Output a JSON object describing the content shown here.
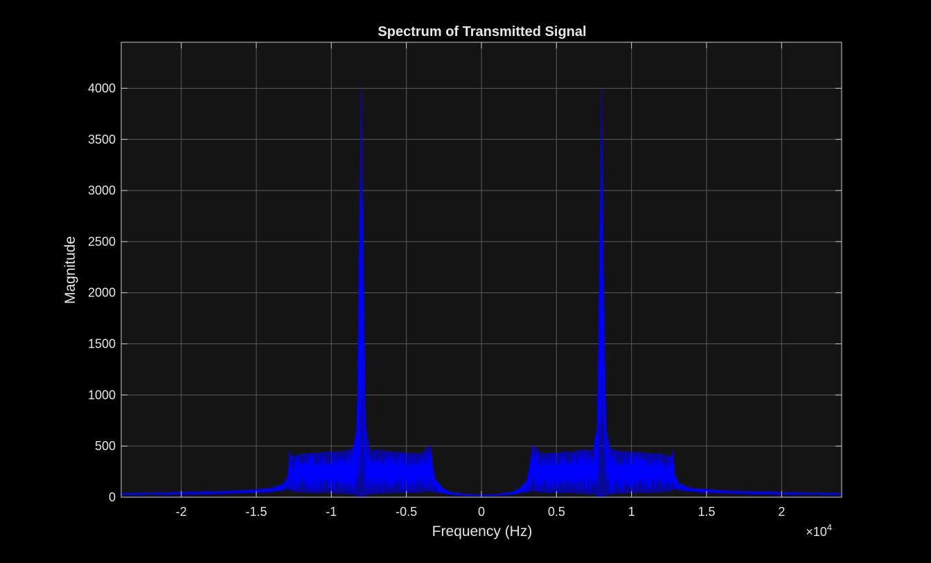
{
  "chart_data": {
    "type": "line",
    "title": "Spectrum of Transmitted Signal",
    "xlabel": "Frequency (Hz)",
    "ylabel": "Magnitude",
    "x_exponent_label": "×10",
    "x_exponent_power": "4",
    "xlim": [
      -24000,
      24000
    ],
    "ylim": [
      0,
      4450
    ],
    "grid": true,
    "x_ticks": [
      -20000,
      -15000,
      -10000,
      -5000,
      0,
      5000,
      10000,
      15000,
      20000
    ],
    "x_tick_labels": [
      "-2",
      "-1.5",
      "-1",
      "-0.5",
      "0",
      "0.5",
      "1",
      "1.5",
      "2"
    ],
    "y_ticks": [
      0,
      500,
      1000,
      1500,
      2000,
      2500,
      3000,
      3500,
      4000
    ],
    "y_tick_labels": [
      "0",
      "500",
      "1000",
      "1500",
      "2000",
      "2500",
      "3000",
      "3500",
      "4000"
    ],
    "colors": {
      "figure_background": "#000000",
      "axes_background": "#141414",
      "grid": "#5a5a5a",
      "axes_box": "#d0d0d0",
      "text": "#e6e6e6",
      "series": "#0000ff"
    },
    "series": [
      {
        "color": "#0000ff",
        "x": [
          -24000,
          -22000,
          -20000,
          -18000,
          -16000,
          -14000,
          -13200,
          -12900,
          -12800,
          -12600,
          -12000,
          -11000,
          -10000,
          -9000,
          -8600,
          -8300,
          -8150,
          -8050,
          -8000,
          -7950,
          -7850,
          -7700,
          -7400,
          -7000,
          -6000,
          -5000,
          -4000,
          -3400,
          -3200,
          -3000,
          -2500,
          -2000,
          -1000,
          0,
          1000,
          2000,
          2500,
          3000,
          3200,
          3400,
          4000,
          5000,
          6000,
          7000,
          7400,
          7700,
          7850,
          7950,
          8000,
          8050,
          8150,
          8300,
          8600,
          9000,
          10000,
          11000,
          12000,
          12600,
          12800,
          12900,
          13200,
          14000,
          16000,
          18000,
          20000,
          22000,
          24000
        ],
        "y_upper": [
          40,
          45,
          50,
          58,
          70,
          95,
          140,
          230,
          470,
          400,
          430,
          440,
          450,
          460,
          480,
          700,
          2600,
          3900,
          4050,
          3900,
          2600,
          700,
          460,
          470,
          450,
          440,
          430,
          520,
          310,
          170,
          90,
          55,
          30,
          25,
          30,
          55,
          90,
          170,
          310,
          520,
          430,
          440,
          450,
          470,
          460,
          700,
          2600,
          3900,
          4050,
          3900,
          2600,
          700,
          480,
          460,
          450,
          440,
          430,
          400,
          470,
          230,
          140,
          95,
          70,
          58,
          50,
          45,
          40
        ],
        "y_lower": [
          25,
          28,
          30,
          34,
          40,
          52,
          65,
          80,
          70,
          60,
          50,
          45,
          40,
          35,
          30,
          20,
          5,
          2,
          0,
          2,
          5,
          20,
          30,
          35,
          40,
          45,
          50,
          60,
          55,
          45,
          35,
          25,
          18,
          15,
          18,
          25,
          35,
          45,
          55,
          60,
          50,
          45,
          40,
          35,
          30,
          20,
          5,
          2,
          0,
          2,
          5,
          20,
          30,
          35,
          40,
          45,
          50,
          60,
          70,
          80,
          65,
          52,
          40,
          34,
          30,
          28,
          25
        ]
      }
    ]
  }
}
